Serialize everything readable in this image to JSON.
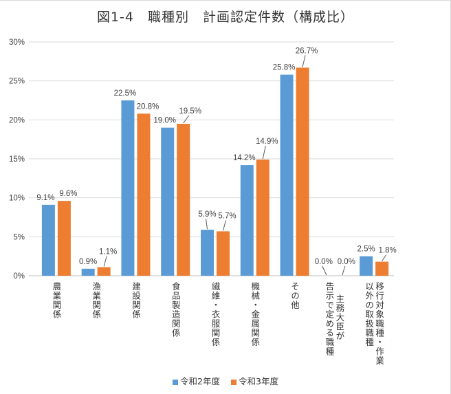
{
  "chart_data": {
    "type": "bar",
    "title": "図1-4　職種別　計画認定件数（構成比）",
    "xlabel": "",
    "ylabel": "",
    "ylim": [
      0,
      30
    ],
    "yticks": [
      "0%",
      "5%",
      "10%",
      "15%",
      "20%",
      "25%",
      "30%"
    ],
    "grid": true,
    "legend_position": "bottom",
    "categories": [
      "農業関係",
      "漁業関係",
      "建設関係",
      "食品製造関係",
      "繊維・衣服関係",
      "機械・金属関係",
      "その他",
      "主務大臣が告示で定める職種",
      "移行対象職種・作業以外の取扱職種"
    ],
    "category_lines": [
      [
        "農業関係"
      ],
      [
        "漁業関係"
      ],
      [
        "建設関係"
      ],
      [
        "食品製造関係"
      ],
      [
        "繊維・衣服関係"
      ],
      [
        "機械・金属関係"
      ],
      [
        "その他"
      ],
      [
        "主務大臣が",
        "告示で定める職種"
      ],
      [
        "移行対象職種・作業",
        "以外の取扱職種"
      ]
    ],
    "series": [
      {
        "name": "令和2年度",
        "color": "#5b9bd5",
        "values": [
          9.1,
          0.9,
          22.5,
          19.0,
          5.9,
          14.2,
          25.8,
          0.0,
          2.5
        ],
        "labels": [
          "9.1%",
          "0.9%",
          "22.5%",
          "19.0%",
          "5.9%",
          "14.2%",
          "25.8%",
          "0.0%",
          "2.5%"
        ]
      },
      {
        "name": "令和3年度",
        "color": "#ed7d31",
        "values": [
          9.6,
          1.1,
          20.8,
          19.5,
          5.7,
          14.9,
          26.7,
          0.0,
          1.8
        ],
        "labels": [
          "9.6%",
          "1.1%",
          "20.8%",
          "19.5%",
          "5.7%",
          "14.9%",
          "26.7%",
          "0.0%",
          "1.8%"
        ]
      }
    ]
  }
}
